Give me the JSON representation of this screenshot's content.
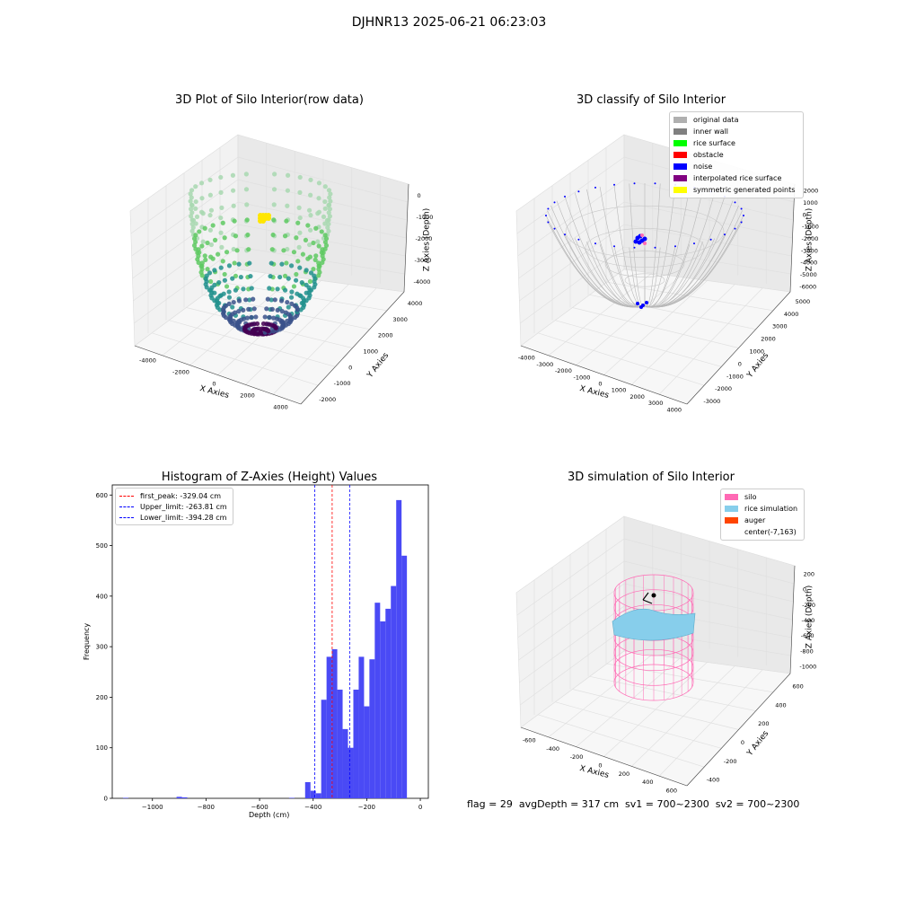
{
  "figure": {
    "suptitle": "DJHNR13 2025-06-21 06:23:03",
    "bottom_info": "flag = 29  avgDepth = 317 cm  sv1 = 700~2300  sv2 = 700~2300"
  },
  "panels": {
    "raw": {
      "title": "3D Plot of Silo Interior(row data)",
      "xlabel": "X Axies",
      "ylabel": "Y Axies",
      "zlabel": "Z Axies (Depth)",
      "xticks": [
        "-4000",
        "-2000",
        "0",
        "2000",
        "4000"
      ],
      "yticks": [
        "-2000",
        "-1000",
        "0",
        "1000",
        "2000",
        "3000",
        "4000"
      ],
      "zticks": [
        "0",
        "-1000",
        "-2000",
        "-3000",
        "-4000"
      ],
      "colormap_colors": [
        "#440154",
        "#3b528b",
        "#21908d",
        "#5ec962",
        "#a8d8b0"
      ],
      "marker_color": "#ffe600"
    },
    "classify": {
      "title": "3D classify of Silo Interior",
      "xlabel": "X Axies",
      "ylabel": "Y Axies",
      "zlabel": "Z Axies (Depth)",
      "xticks": [
        "-4000",
        "-3000",
        "-2000",
        "-1000",
        "0",
        "1000",
        "2000",
        "3000",
        "4000"
      ],
      "yticks": [
        "-3000",
        "-2000",
        "-1000",
        "0",
        "1000",
        "2000",
        "3000",
        "4000",
        "5000"
      ],
      "zticks": [
        "2000",
        "1000",
        "0",
        "-1000",
        "-2000",
        "-3000",
        "-4000",
        "-5000",
        "-6000"
      ],
      "legend": [
        {
          "label": "original data",
          "color": "#b0b0b0"
        },
        {
          "label": "inner wall",
          "color": "#808080"
        },
        {
          "label": "rice surface",
          "color": "#00ff00"
        },
        {
          "label": "obstacle",
          "color": "#ff0000"
        },
        {
          "label": "noise",
          "color": "#0000ff"
        },
        {
          "label": "interpolated rice surface",
          "color": "#800080"
        },
        {
          "label": "symmetric generated points",
          "color": "#ffff00"
        }
      ]
    },
    "simulation": {
      "title": "3D simulation of Silo Interior",
      "xlabel": "X Axies",
      "ylabel": "Y Axies",
      "zlabel": "Z Axies (Depth)",
      "xticks": [
        "-600",
        "-400",
        "-200",
        "0",
        "200",
        "400",
        "600"
      ],
      "yticks": [
        "-400",
        "-200",
        "0",
        "200",
        "400",
        "600"
      ],
      "zticks": [
        "200",
        "0",
        "-200",
        "-400",
        "-600",
        "-800",
        "-1000"
      ],
      "legend": [
        {
          "label": "silo",
          "color": "#ff69b4"
        },
        {
          "label": "rice simulation",
          "color": "#87ceeb"
        },
        {
          "label": "auger",
          "color": "#ff4500"
        },
        {
          "label": "center(-7,163)",
          "color": ""
        }
      ]
    }
  },
  "chart_data": {
    "type": "bar",
    "title": "Histogram of Z-Axies (Height) Values",
    "xlabel": "Depth (cm)",
    "ylabel": "Frequency",
    "xlim": [
      -1150,
      30
    ],
    "ylim": [
      0,
      620
    ],
    "xticks": [
      -1000,
      -800,
      -600,
      -400,
      -200,
      0
    ],
    "yticks": [
      0,
      100,
      200,
      300,
      400,
      500,
      600
    ],
    "bar_color": "#4a4af5",
    "bins": [
      {
        "x0": -1110,
        "x1": -1090,
        "count": 1
      },
      {
        "x0": -910,
        "x1": -890,
        "count": 3
      },
      {
        "x0": -890,
        "x1": -870,
        "count": 2
      },
      {
        "x0": -490,
        "x1": -470,
        "count": 1
      },
      {
        "x0": -430,
        "x1": -410,
        "count": 32
      },
      {
        "x0": -410,
        "x1": -390,
        "count": 15
      },
      {
        "x0": -390,
        "x1": -370,
        "count": 10
      },
      {
        "x0": -370,
        "x1": -350,
        "count": 195
      },
      {
        "x0": -350,
        "x1": -330,
        "count": 280
      },
      {
        "x0": -330,
        "x1": -310,
        "count": 295
      },
      {
        "x0": -310,
        "x1": -290,
        "count": 215
      },
      {
        "x0": -290,
        "x1": -270,
        "count": 137
      },
      {
        "x0": -270,
        "x1": -250,
        "count": 100
      },
      {
        "x0": -250,
        "x1": -230,
        "count": 215
      },
      {
        "x0": -230,
        "x1": -210,
        "count": 280
      },
      {
        "x0": -210,
        "x1": -190,
        "count": 182
      },
      {
        "x0": -190,
        "x1": -170,
        "count": 275
      },
      {
        "x0": -170,
        "x1": -150,
        "count": 387
      },
      {
        "x0": -150,
        "x1": -130,
        "count": 350
      },
      {
        "x0": -130,
        "x1": -110,
        "count": 375
      },
      {
        "x0": -110,
        "x1": -90,
        "count": 420
      },
      {
        "x0": -90,
        "x1": -70,
        "count": 590
      },
      {
        "x0": -70,
        "x1": -50,
        "count": 480
      }
    ],
    "vlines": [
      {
        "name": "first_peak: -329.04 cm",
        "x": -329.04,
        "color": "#ff0000"
      },
      {
        "name": "Upper_limit: -263.81 cm",
        "x": -263.81,
        "color": "#0000ff"
      },
      {
        "name": "Lower_limit: -394.28 cm",
        "x": -394.28,
        "color": "#0000ff"
      }
    ]
  }
}
